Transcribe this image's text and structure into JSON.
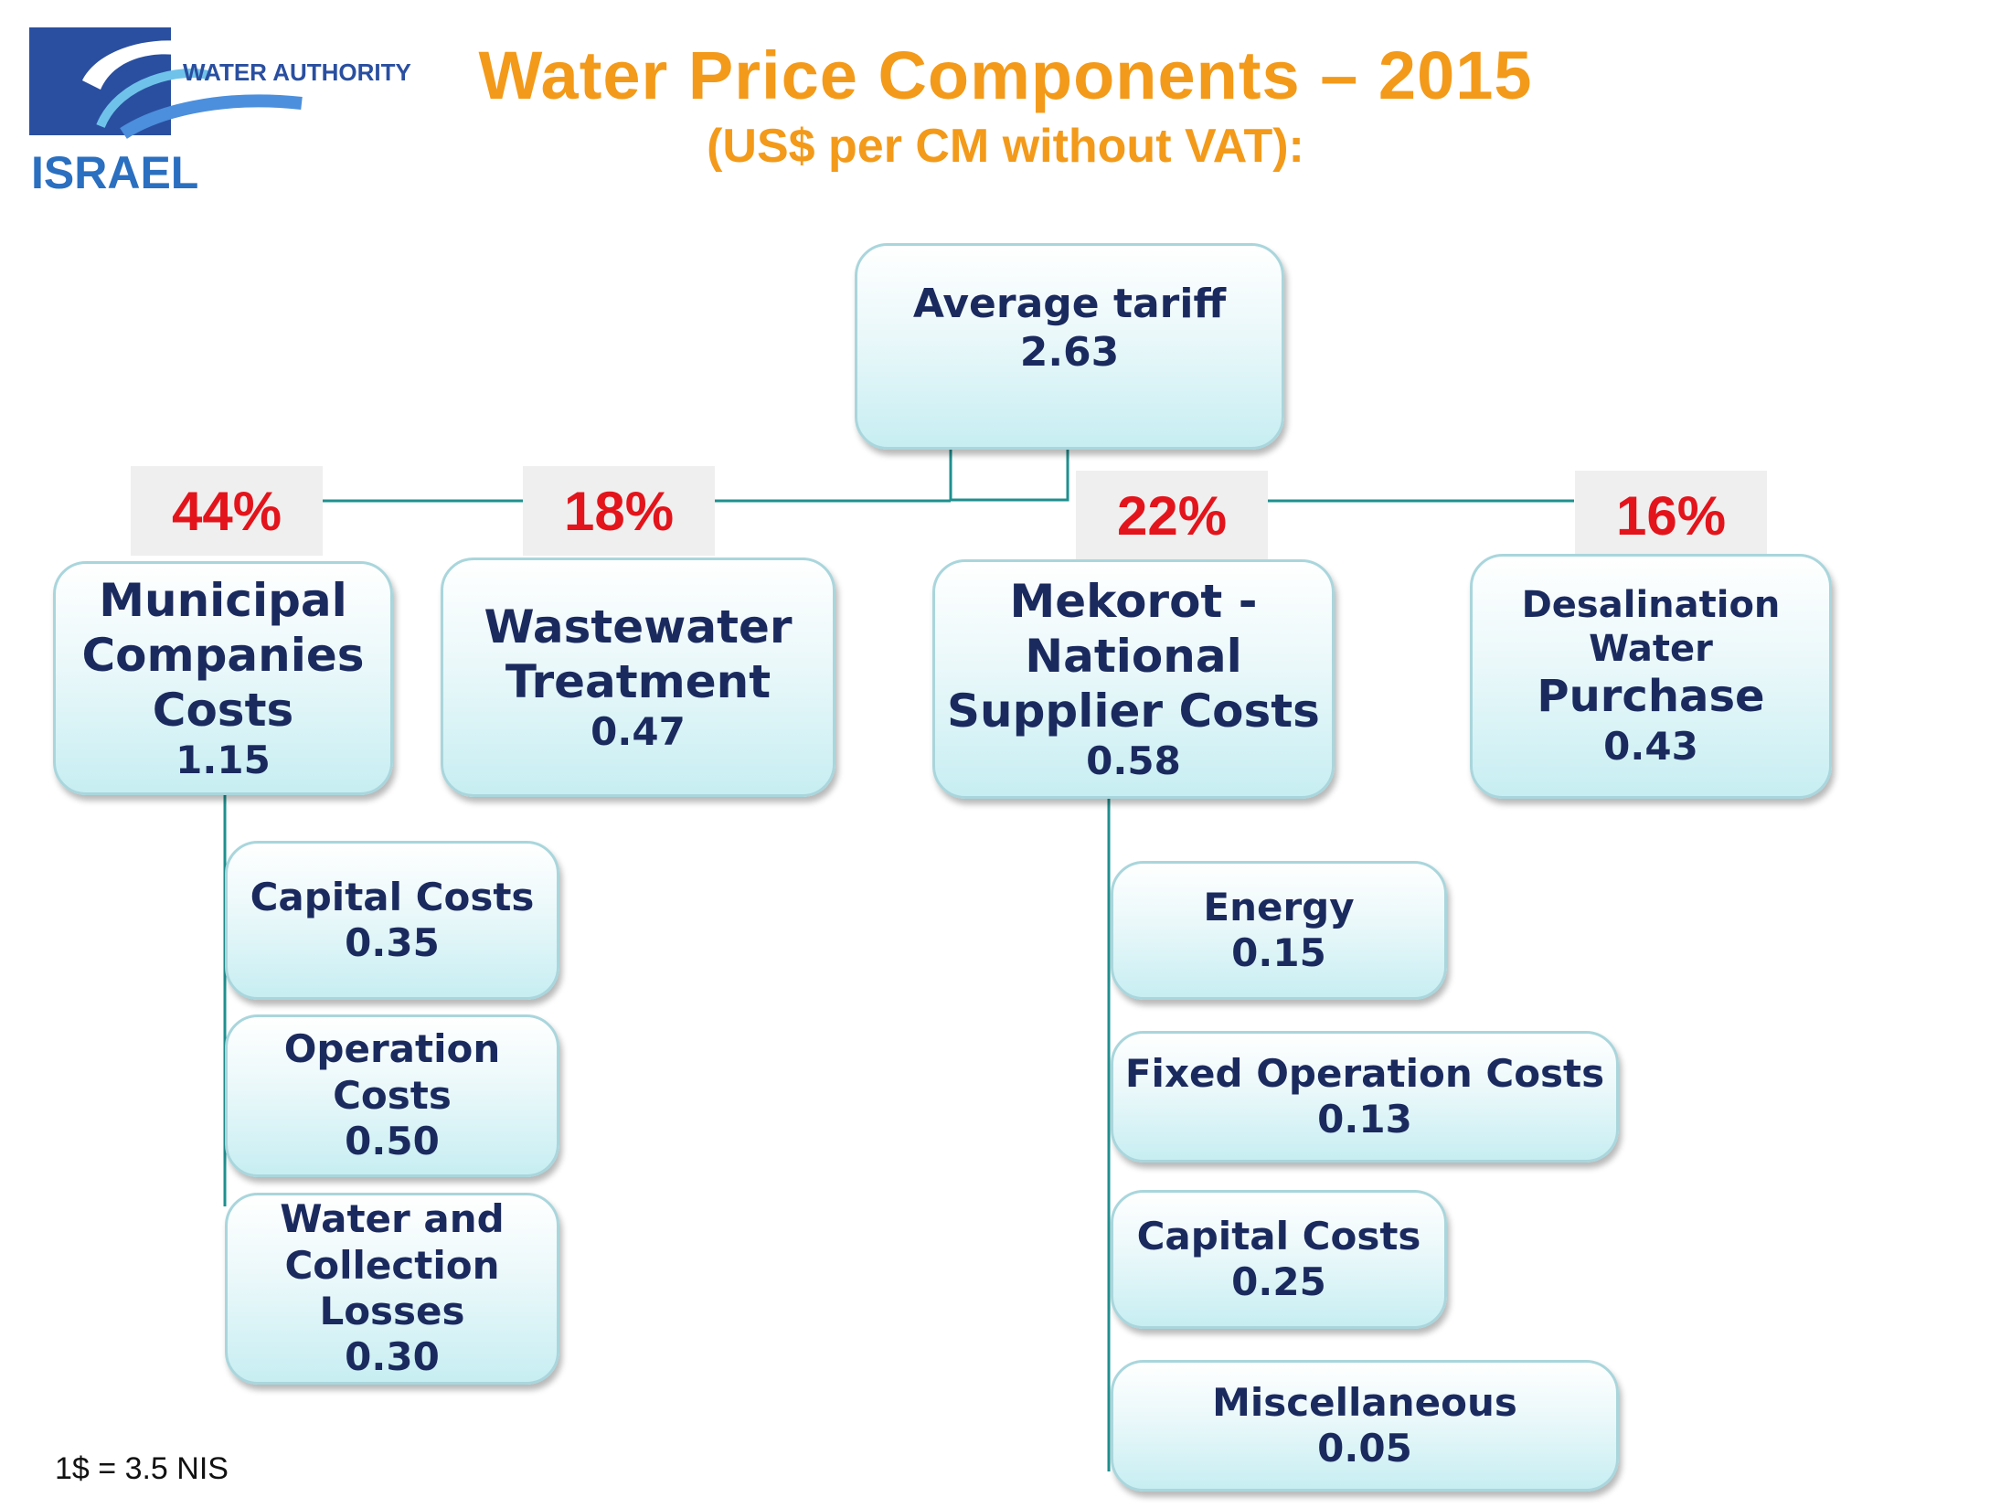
{
  "logo": {
    "agency": "WATER AUTHORITY",
    "country": "ISRAEL"
  },
  "header": {
    "title": "Water Price Components – 2015",
    "subtitle": "(US$ per CM without VAT):"
  },
  "root": {
    "label": "Average tariff",
    "value": "2.63"
  },
  "categories": [
    {
      "share": "44%",
      "lines": [
        "Municipal",
        "Companies",
        "Costs"
      ],
      "value": "1.15"
    },
    {
      "share": "18%",
      "lines": [
        "Wastewater",
        "Treatment"
      ],
      "value": "0.47"
    },
    {
      "share": "22%",
      "lines": [
        "Mekorot -",
        "National",
        "Supplier Costs"
      ],
      "value": "0.58"
    },
    {
      "share": "16%",
      "lines": [
        "Desalination",
        "Water",
        "Purchase"
      ],
      "value": "0.43"
    }
  ],
  "municipal_items": [
    {
      "lines": [
        "Capital Costs"
      ],
      "value": "0.35"
    },
    {
      "lines": [
        "Operation",
        "Costs"
      ],
      "value": "0.50"
    },
    {
      "lines": [
        "Water and",
        "Collection",
        "Losses"
      ],
      "value": "0.30"
    }
  ],
  "mekorot_items": [
    {
      "lines": [
        "Energy"
      ],
      "value": "0.15"
    },
    {
      "lines": [
        "Fixed Operation Costs"
      ],
      "value": "0.13"
    },
    {
      "lines": [
        "Capital Costs"
      ],
      "value": "0.25"
    },
    {
      "lines": [
        "Miscellaneous"
      ],
      "value": "0.05"
    }
  ],
  "footer": {
    "exchange_note": "1$ = 3.5 NIS"
  },
  "colors": {
    "title": "#f39a1a",
    "percent": "#e3141b",
    "box_text": "#1b2a5e",
    "connector": "#1f8f8f",
    "logo_blue": "#2a4fa0"
  }
}
